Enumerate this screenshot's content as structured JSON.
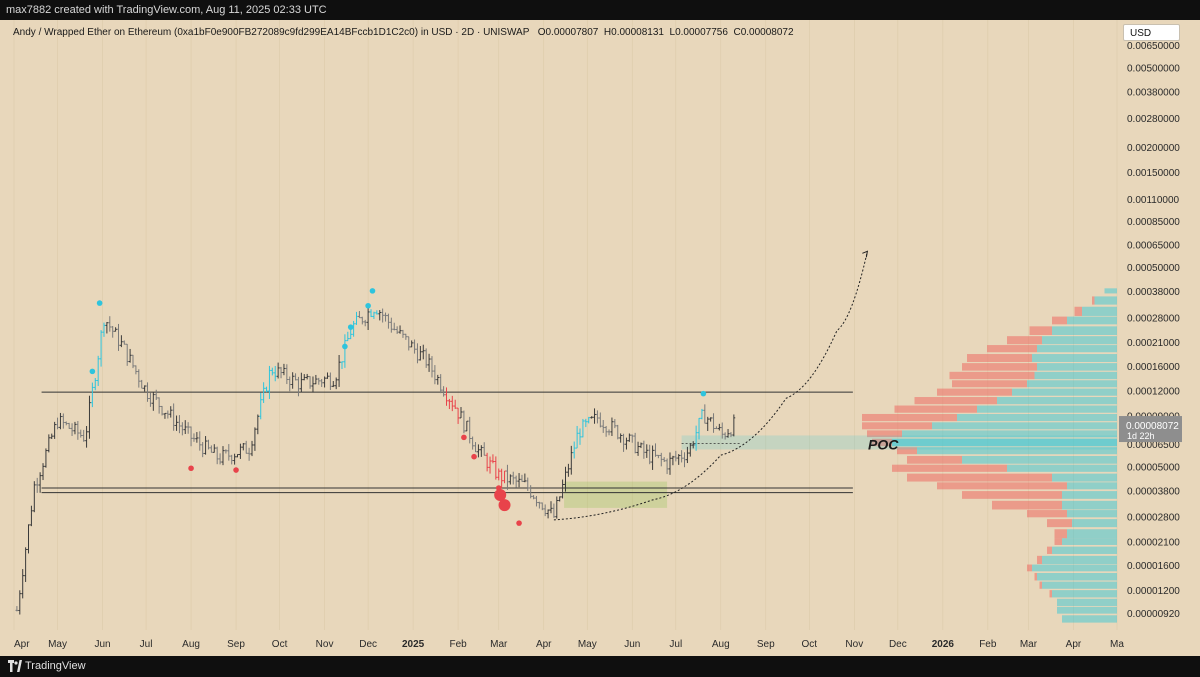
{
  "header": {
    "credit": "max7882 created with TradingView.com, Aug 11, 2025 02:33 UTC"
  },
  "legend": {
    "symbol": "Andy / Wrapped Ether on Ethereum (0xa1bF0e900FB272089c9fd299EA14BFccb1D1C2c0) in USD · 2D · UNISWAP",
    "open": "O0.00007807",
    "high": "H0.00008131",
    "low": "L0.00007756",
    "close": "C0.00008072"
  },
  "currency": "USD",
  "footer": {
    "brand": "TradingView"
  },
  "colors": {
    "background": "#e8d7bb",
    "candle": "#3a3a3a",
    "bull_highlight": "#2ec4dd",
    "bear_highlight": "#e8434a",
    "volume_profile_up": "#26c6da",
    "volume_profile_down": "#ef5350"
  },
  "chart_data": {
    "type": "candlestick",
    "price_scale": "log",
    "y_tick_labels": [
      "0.00650000",
      "0.00500000",
      "0.00380000",
      "0.00280000",
      "0.00200000",
      "0.00150000",
      "0.00110000",
      "0.00085000",
      "0.00065000",
      "0.00050000",
      "0.00038000",
      "0.00028000",
      "0.00021000",
      "0.00016000",
      "0.00012000",
      "0.00009000",
      "0.00006500",
      "0.00005000",
      "0.00003800",
      "0.00002800",
      "0.00002100",
      "0.00001600",
      "0.00001200",
      "0.00000920"
    ],
    "x_tick_labels": [
      "Apr",
      "May",
      "Jun",
      "Jul",
      "Aug",
      "Sep",
      "Oct",
      "Nov",
      "Dec",
      "2025",
      "Feb",
      "Mar",
      "Apr",
      "May",
      "Jun",
      "Jul",
      "Aug",
      "Sep",
      "Oct",
      "Nov",
      "Dec",
      "2026",
      "Feb",
      "Mar",
      "Apr",
      "Ma"
    ],
    "last_price": "0.00008072",
    "countdown": "1d 22h",
    "poc_label": "POC",
    "range_levels": [
      3.7e-05,
      0.000118,
      3.9e-05
    ],
    "price_path": [
      {
        "date": "2024-04-03",
        "price": 9.5e-06
      },
      {
        "date": "2024-04-15",
        "price": 4e-05
      },
      {
        "date": "2024-05-01",
        "price": 8.5e-05
      },
      {
        "date": "2024-05-20",
        "price": 7e-05
      },
      {
        "date": "2024-06-02",
        "price": 0.00028
      },
      {
        "date": "2024-06-15",
        "price": 0.0002
      },
      {
        "date": "2024-07-01",
        "price": 0.00012
      },
      {
        "date": "2024-08-01",
        "price": 7e-05
      },
      {
        "date": "2024-08-20",
        "price": 5.5e-05
      },
      {
        "date": "2024-09-10",
        "price": 6.2e-05
      },
      {
        "date": "2024-09-25",
        "price": 0.000155
      },
      {
        "date": "2024-10-15",
        "price": 0.00013
      },
      {
        "date": "2024-11-08",
        "price": 0.00014
      },
      {
        "date": "2024-11-20",
        "price": 0.00025
      },
      {
        "date": "2024-12-06",
        "price": 0.00032
      },
      {
        "date": "2024-12-20",
        "price": 0.00024
      },
      {
        "date": "2025-01-10",
        "price": 0.00017
      },
      {
        "date": "2025-01-30",
        "price": 0.0001
      },
      {
        "date": "2025-02-15",
        "price": 6e-05
      },
      {
        "date": "2025-03-01",
        "price": 4.5e-05
      },
      {
        "date": "2025-03-20",
        "price": 4e-05
      },
      {
        "date": "2025-04-08",
        "price": 2.8e-05
      },
      {
        "date": "2025-04-25",
        "price": 7.5e-05
      },
      {
        "date": "2025-05-08",
        "price": 8.8e-05
      },
      {
        "date": "2025-05-25",
        "price": 7.2e-05
      },
      {
        "date": "2025-06-10",
        "price": 5.8e-05
      },
      {
        "date": "2025-06-25",
        "price": 5.2e-05
      },
      {
        "date": "2025-07-10",
        "price": 6e-05
      },
      {
        "date": "2025-07-20",
        "price": 9.2e-05
      },
      {
        "date": "2025-08-02",
        "price": 7.2e-05
      },
      {
        "date": "2025-08-10",
        "price": 8.1e-05
      }
    ],
    "signal_markers": [
      {
        "date": "2024-05-25",
        "price": 0.00015,
        "type": "bull"
      },
      {
        "date": "2024-05-30",
        "price": 0.00033,
        "type": "bull"
      },
      {
        "date": "2024-08-01",
        "price": 4.9e-05,
        "type": "bear"
      },
      {
        "date": "2024-09-01",
        "price": 4.8e-05,
        "type": "bear"
      },
      {
        "date": "2024-11-15",
        "price": 0.0002,
        "type": "bull"
      },
      {
        "date": "2024-11-19",
        "price": 0.00025,
        "type": "bull"
      },
      {
        "date": "2024-12-01",
        "price": 0.00032,
        "type": "bull"
      },
      {
        "date": "2024-12-04",
        "price": 0.00038,
        "type": "bull"
      },
      {
        "date": "2025-02-05",
        "price": 7e-05,
        "type": "bear"
      },
      {
        "date": "2025-02-12",
        "price": 5.6e-05,
        "type": "bear"
      },
      {
        "date": "2025-03-01",
        "price": 3.9e-05,
        "type": "bear"
      },
      {
        "date": "2025-03-02",
        "price": 3.6e-05,
        "type": "bear"
      },
      {
        "date": "2025-03-05",
        "price": 3.2e-05,
        "type": "bear"
      },
      {
        "date": "2025-03-15",
        "price": 2.6e-05,
        "type": "bear"
      },
      {
        "date": "2025-07-20",
        "price": 0.000116,
        "type": "bull"
      }
    ],
    "projection": [
      {
        "date": "2025-04-08",
        "price": 2.7e-05
      },
      {
        "date": "2025-06-15",
        "price": 3.4e-05
      },
      {
        "date": "2025-08-01",
        "price": 5.7e-05
      },
      {
        "date": "2025-09-15",
        "price": 0.00011
      },
      {
        "date": "2025-10-20",
        "price": 0.00024
      },
      {
        "date": "2025-11-10",
        "price": 0.0006
      }
    ],
    "volume_profile": [
      {
        "price": 0.00038,
        "up": 0.05,
        "down": 0.0
      },
      {
        "price": 0.00034,
        "up": 0.09,
        "down": 0.01
      },
      {
        "price": 0.0003,
        "up": 0.14,
        "down": 0.03
      },
      {
        "price": 0.00027,
        "up": 0.2,
        "down": 0.06
      },
      {
        "price": 0.00024,
        "up": 0.26,
        "down": 0.09
      },
      {
        "price": 0.000215,
        "up": 0.3,
        "down": 0.14
      },
      {
        "price": 0.000195,
        "up": 0.32,
        "down": 0.2
      },
      {
        "price": 0.000175,
        "up": 0.34,
        "down": 0.26
      },
      {
        "price": 0.000158,
        "up": 0.32,
        "down": 0.3
      },
      {
        "price": 0.000143,
        "up": 0.33,
        "down": 0.34
      },
      {
        "price": 0.00013,
        "up": 0.36,
        "down": 0.3
      },
      {
        "price": 0.000118,
        "up": 0.42,
        "down": 0.3
      },
      {
        "price": 0.000107,
        "up": 0.48,
        "down": 0.33
      },
      {
        "price": 9.7e-05,
        "up": 0.56,
        "down": 0.33
      },
      {
        "price": 8.8e-05,
        "up": 0.64,
        "down": 0.38
      },
      {
        "price": 8e-05,
        "up": 0.74,
        "down": 0.28
      },
      {
        "price": 7.3e-05,
        "up": 0.86,
        "down": 0.14
      },
      {
        "price": 6.6e-05,
        "up": 0.9,
        "down": 0.08
      },
      {
        "price": 6e-05,
        "up": 0.8,
        "down": 0.08
      },
      {
        "price": 5.4e-05,
        "up": 0.62,
        "down": 0.22
      },
      {
        "price": 4.9e-05,
        "up": 0.44,
        "down": 0.46
      },
      {
        "price": 4.4e-05,
        "up": 0.26,
        "down": 0.58
      },
      {
        "price": 4e-05,
        "up": 0.2,
        "down": 0.52
      },
      {
        "price": 3.6e-05,
        "up": 0.22,
        "down": 0.4
      },
      {
        "price": 3.2e-05,
        "up": 0.22,
        "down": 0.28
      },
      {
        "price": 2.9e-05,
        "up": 0.2,
        "down": 0.16
      },
      {
        "price": 2.6e-05,
        "up": 0.18,
        "down": 0.1
      },
      {
        "price": 2.3e-05,
        "up": 0.2,
        "down": 0.05
      },
      {
        "price": 2.1e-05,
        "up": 0.22,
        "down": 0.03
      },
      {
        "price": 1.9e-05,
        "up": 0.26,
        "down": 0.02
      },
      {
        "price": 1.7e-05,
        "up": 0.3,
        "down": 0.02
      },
      {
        "price": 1.55e-05,
        "up": 0.34,
        "down": 0.02
      },
      {
        "price": 1.4e-05,
        "up": 0.32,
        "down": 0.01
      },
      {
        "price": 1.27e-05,
        "up": 0.3,
        "down": 0.01
      },
      {
        "price": 1.15e-05,
        "up": 0.26,
        "down": 0.01
      },
      {
        "price": 1.04e-05,
        "up": 0.24,
        "down": 0.0
      },
      {
        "price": 9.5e-06,
        "up": 0.24,
        "down": 0.0
      },
      {
        "price": 8.6e-06,
        "up": 0.22,
        "down": 0.0
      }
    ]
  }
}
